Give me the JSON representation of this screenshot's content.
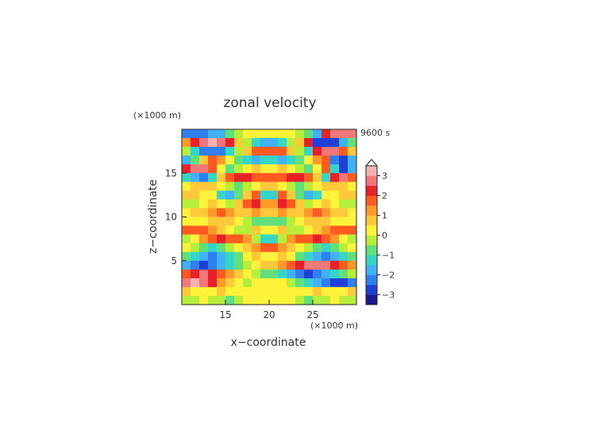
{
  "chart_data": {
    "type": "heatmap",
    "title": "zonal velocity",
    "xlabel": "x−coordinate",
    "ylabel": "z−coordinate",
    "x_unit": "(×1000 m)",
    "y_unit": "(×1000 m)",
    "time_label": "9600 s",
    "xlim": [
      10,
      30
    ],
    "ylim": [
      0,
      20
    ],
    "x_ticks": [
      15,
      20,
      25
    ],
    "y_ticks": [
      5,
      10,
      15
    ],
    "x_tick_labels": [
      "15",
      "20",
      "25"
    ],
    "y_tick_labels": [
      "5",
      "10",
      "15"
    ],
    "colorbar": {
      "range": [
        -3.5,
        3.5
      ],
      "ticks": [
        3,
        2,
        1,
        0,
        -1,
        -2,
        -3
      ],
      "tick_labels": [
        "3",
        "2",
        "1",
        "0",
        "−1",
        "−2",
        "−3"
      ],
      "extend": "max",
      "colors": [
        "#1a1a8c",
        "#1f3fd6",
        "#2f7ff0",
        "#3fb3f5",
        "#35d6c8",
        "#5fe07a",
        "#b6ee3a",
        "#fff23a",
        "#ffc93a",
        "#ff9a2a",
        "#ff5a1f",
        "#e8202a",
        "#f07878",
        "#f5b0b0"
      ]
    },
    "field": {
      "x": [
        10.5,
        11.5,
        12.5,
        13.5,
        14.5,
        15.5,
        16.5,
        17.5,
        18.5,
        19.5,
        20.5,
        21.5,
        22.5,
        23.5,
        24.5,
        25.5,
        26.5,
        27.5,
        28.5,
        29.5
      ],
      "z": [
        19.5,
        18.5,
        17.5,
        16.5,
        15.5,
        14.5,
        13.5,
        12.5,
        11.5,
        10.5,
        9.5,
        8.5,
        7.5,
        6.5,
        5.5,
        4.5,
        3.5,
        2.5,
        1.5,
        0.5
      ],
      "values": [
        [
          -2.5,
          -2.5,
          -2.3,
          -2.0,
          -1.6,
          -1.0,
          -0.5,
          0.0,
          0.3,
          0.0,
          0.0,
          0.3,
          0.0,
          -0.5,
          -1.0,
          -1.6,
          2.0,
          2.6,
          2.5,
          2.5
        ],
        [
          1.0,
          2.0,
          2.8,
          3.0,
          2.8,
          2.0,
          0.8,
          -0.5,
          -1.5,
          -1.8,
          -1.8,
          -1.5,
          -0.5,
          0.8,
          2.0,
          -2.8,
          -3.0,
          -2.8,
          -2.0,
          -1.0
        ],
        [
          -0.5,
          -1.5,
          -2.2,
          -2.4,
          -2.2,
          -1.5,
          -0.5,
          0.8,
          1.5,
          1.8,
          1.8,
          1.5,
          0.8,
          -0.5,
          -1.5,
          2.2,
          2.8,
          2.6,
          1.5,
          0.5
        ],
        [
          -2.0,
          -1.0,
          0.5,
          1.5,
          1.0,
          0.0,
          -0.8,
          -1.5,
          -1.8,
          -1.2,
          -1.2,
          -1.8,
          -1.5,
          -0.8,
          0.0,
          1.0,
          1.5,
          -2.5,
          -2.8,
          -2.0
        ],
        [
          2.0,
          2.6,
          2.5,
          1.5,
          0.0,
          -1.0,
          -0.5,
          0.0,
          0.5,
          0.3,
          0.3,
          0.5,
          0.0,
          -0.5,
          -1.0,
          0.0,
          1.5,
          -1.5,
          -2.6,
          -2.0
        ],
        [
          -1.5,
          -2.0,
          -2.2,
          -1.2,
          0.5,
          1.5,
          2.0,
          2.4,
          1.8,
          1.5,
          1.5,
          1.8,
          2.4,
          2.0,
          1.5,
          0.5,
          -1.2,
          2.0,
          2.5,
          1.8
        ],
        [
          0.0,
          0.5,
          0.8,
          0.5,
          0.0,
          -0.5,
          -0.8,
          -0.5,
          0.0,
          0.8,
          0.8,
          0.0,
          -0.5,
          -0.8,
          -0.5,
          0.0,
          0.5,
          0.8,
          0.5,
          0.0
        ],
        [
          0.5,
          0.5,
          0.2,
          0.0,
          -1.5,
          -2.0,
          -1.0,
          0.5,
          1.5,
          -1.5,
          -1.5,
          1.5,
          0.5,
          -1.0,
          -2.0,
          -1.5,
          0.0,
          0.2,
          0.5,
          0.5
        ],
        [
          -0.5,
          -0.5,
          0.3,
          0.5,
          0.0,
          -0.5,
          0.5,
          1.5,
          2.0,
          1.2,
          1.2,
          2.0,
          1.5,
          0.5,
          -0.5,
          0.0,
          0.5,
          0.3,
          -0.5,
          -0.5
        ],
        [
          0.3,
          0.5,
          0.8,
          1.2,
          1.5,
          1.0,
          0.5,
          0.8,
          1.0,
          0.5,
          0.5,
          1.0,
          0.8,
          0.5,
          1.0,
          1.5,
          1.2,
          0.8,
          0.5,
          0.3
        ],
        [
          0.0,
          0.0,
          0.3,
          0.5,
          0.8,
          0.5,
          0.0,
          -0.5,
          -1.0,
          -0.8,
          -0.8,
          -1.0,
          -0.5,
          0.0,
          0.5,
          0.8,
          0.5,
          0.3,
          0.0,
          0.0
        ],
        [
          1.5,
          1.8,
          1.5,
          1.0,
          0.5,
          0.0,
          -0.5,
          -0.2,
          0.5,
          0.0,
          0.0,
          0.5,
          -0.2,
          -0.5,
          0.0,
          0.5,
          1.0,
          1.5,
          1.8,
          1.5
        ],
        [
          -0.5,
          0.0,
          1.0,
          1.8,
          2.0,
          1.8,
          1.5,
          1.0,
          -0.5,
          -1.5,
          -1.5,
          -0.5,
          1.0,
          1.5,
          1.8,
          2.0,
          1.8,
          1.0,
          0.0,
          -0.5
        ],
        [
          0.0,
          -0.5,
          -1.0,
          -1.2,
          -1.0,
          -0.5,
          0.0,
          0.5,
          1.0,
          1.5,
          1.5,
          1.0,
          0.5,
          0.0,
          -0.5,
          -1.0,
          -1.2,
          -1.0,
          -0.5,
          0.0
        ],
        [
          -1.0,
          -1.5,
          -2.0,
          -2.3,
          -2.0,
          -1.5,
          -0.8,
          0.0,
          0.5,
          0.0,
          0.0,
          0.5,
          0.0,
          -0.8,
          -1.5,
          -2.0,
          -2.3,
          -2.0,
          -1.5,
          -1.0
        ],
        [
          -2.0,
          -2.5,
          -2.8,
          -2.5,
          -2.0,
          -1.5,
          -1.0,
          -0.5,
          0.0,
          0.5,
          0.5,
          1.0,
          1.5,
          2.0,
          2.5,
          2.8,
          2.5,
          2.0,
          1.5,
          1.0
        ],
        [
          1.5,
          2.0,
          2.5,
          2.2,
          1.5,
          1.0,
          0.5,
          0.0,
          -0.5,
          -1.0,
          -1.0,
          -1.5,
          -2.0,
          -2.5,
          -2.8,
          -2.5,
          -2.0,
          -1.5,
          -1.0,
          -0.5
        ],
        [
          2.5,
          3.0,
          2.8,
          2.0,
          1.0,
          0.5,
          0.0,
          -0.2,
          0.0,
          0.0,
          0.0,
          0.0,
          -0.5,
          -1.0,
          -1.5,
          -2.0,
          -2.5,
          -2.8,
          -3.0,
          -2.5
        ],
        [
          0.5,
          0.3,
          0.0,
          0.3,
          0.5,
          0.3,
          0.0,
          0.2,
          0.3,
          0.2,
          0.2,
          0.3,
          0.2,
          0.0,
          0.3,
          0.5,
          0.3,
          0.0,
          0.3,
          0.5
        ],
        [
          -0.5,
          -0.3,
          0.0,
          -0.3,
          -0.5,
          -0.8,
          -0.5,
          0.0,
          0.3,
          0.0,
          0.0,
          0.3,
          0.0,
          -0.5,
          -0.8,
          -0.5,
          -0.3,
          0.0,
          -0.3,
          -0.5
        ]
      ]
    }
  }
}
